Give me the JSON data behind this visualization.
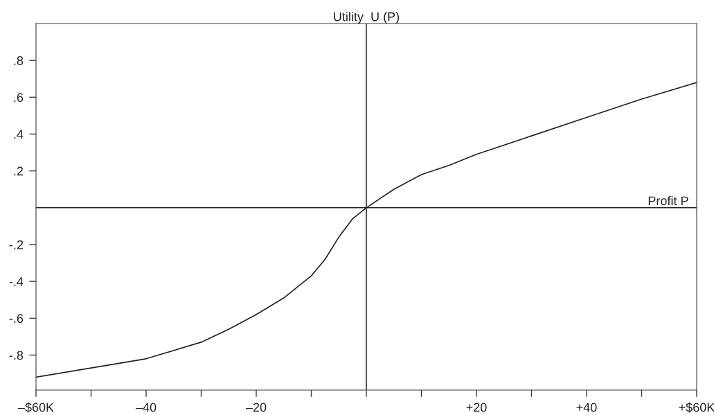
{
  "chart_data": {
    "type": "line",
    "x": [
      -60,
      -50,
      -40,
      -30,
      -25,
      -20,
      -15,
      -10,
      -7.5,
      -5,
      -2.5,
      0,
      5,
      10,
      15,
      20,
      30,
      40,
      50,
      60
    ],
    "series": [
      {
        "color": "#222222",
        "values": [
          -0.92,
          -0.87,
          -0.82,
          -0.73,
          -0.66,
          -0.58,
          -0.49,
          -0.37,
          -0.28,
          -0.16,
          -0.06,
          0,
          0.1,
          0.18,
          0.23,
          0.29,
          0.39,
          0.49,
          0.59,
          0.68
        ]
      }
    ],
    "xlim": [
      -60,
      60
    ],
    "ylim": [
      -0.99,
      1.0
    ],
    "xticks": [
      {
        "value": -60,
        "label": "–$60K"
      },
      {
        "value": -50,
        "label": null
      },
      {
        "value": -40,
        "label": "–40"
      },
      {
        "value": -30,
        "label": null
      },
      {
        "value": -20,
        "label": "–20"
      },
      {
        "value": -10,
        "label": null
      },
      {
        "value": 0,
        "label": null
      },
      {
        "value": 10,
        "label": null
      },
      {
        "value": 20,
        "label": "+20"
      },
      {
        "value": 30,
        "label": null
      },
      {
        "value": 40,
        "label": "+40"
      },
      {
        "value": 50,
        "label": null
      },
      {
        "value": 60,
        "label": "+$60K"
      }
    ],
    "yticks": [
      {
        "value": 0.8,
        "label": ".8"
      },
      {
        "value": 0.6,
        "label": ".6"
      },
      {
        "value": 0.4,
        "label": ".4"
      },
      {
        "value": 0.2,
        "label": ".2"
      },
      {
        "value": -0.2,
        "label": "-.2"
      },
      {
        "value": -0.4,
        "label": "-.4"
      },
      {
        "value": -0.6,
        "label": "-.6"
      },
      {
        "value": -0.8,
        "label": "-.8"
      }
    ],
    "ref_lines": [
      {
        "axis": "y",
        "value": 0,
        "label": "Profit P",
        "color": "#222222"
      },
      {
        "axis": "x",
        "value": 0,
        "label": "Utility  U (P)",
        "color": "#222222"
      }
    ],
    "grid": false,
    "marker": "none",
    "line_style": "solid"
  }
}
